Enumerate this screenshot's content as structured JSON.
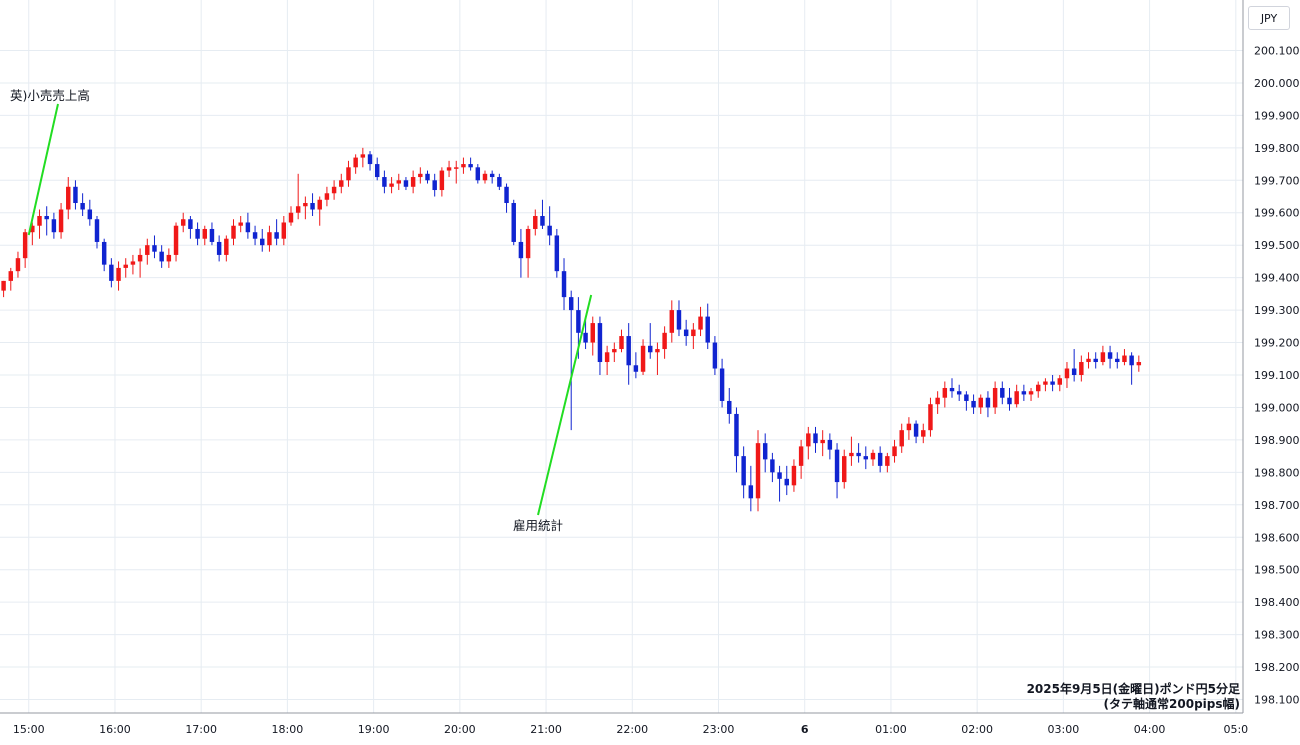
{
  "currency": "JPY",
  "caption": {
    "line1": "2025年9月5日(金曜日)ポンド円5分足",
    "line2": "(タテ軸通常200pips幅)"
  },
  "colors": {
    "up": "#f01818",
    "down": "#1024d0",
    "annotation": "#22dd22",
    "grid": "#e6ecf2",
    "axis": "#9598a1"
  },
  "chart_data": {
    "type": "candlestick",
    "ylim": [
      198.08,
      200.12
    ],
    "y_ticks": [
      "200.100",
      "200.000",
      "199.900",
      "199.800",
      "199.700",
      "199.600",
      "199.500",
      "199.400",
      "199.300",
      "199.200",
      "199.100",
      "199.000",
      "198.900",
      "198.800",
      "198.700",
      "198.600",
      "198.500",
      "198.400",
      "198.300",
      "198.200",
      "198.100"
    ],
    "x_ticks": [
      "15:00",
      "16:00",
      "17:00",
      "18:00",
      "19:00",
      "20:00",
      "21:00",
      "22:00",
      "23:00",
      "6",
      "01:00",
      "02:00",
      "03:00",
      "04:00",
      "05:0"
    ],
    "x_tick_minutes": [
      900,
      960,
      1020,
      1080,
      1140,
      1200,
      1260,
      1320,
      1380,
      1440,
      1500,
      1560,
      1620,
      1680,
      1740
    ],
    "x_range_minutes": [
      880,
      1745
    ],
    "candle_minutes": 5,
    "start_minute": 880,
    "annotations": [
      {
        "text": "英)小売売上高",
        "time": "15:00"
      },
      {
        "text": "雇用統計",
        "time": "21:30"
      }
    ],
    "candles": [
      [
        199.36,
        199.39,
        199.34,
        199.39
      ],
      [
        199.39,
        199.43,
        199.36,
        199.42
      ],
      [
        199.42,
        199.48,
        199.4,
        199.46
      ],
      [
        199.46,
        199.55,
        199.43,
        199.54
      ],
      [
        199.54,
        199.57,
        199.5,
        199.56
      ],
      [
        199.56,
        199.61,
        199.52,
        199.59
      ],
      [
        199.59,
        199.62,
        199.53,
        199.58
      ],
      [
        199.58,
        199.6,
        199.52,
        199.54
      ],
      [
        199.54,
        199.63,
        199.52,
        199.61
      ],
      [
        199.61,
        199.71,
        199.58,
        199.68
      ],
      [
        199.68,
        199.7,
        199.61,
        199.63
      ],
      [
        199.63,
        199.66,
        199.59,
        199.61
      ],
      [
        199.61,
        199.64,
        199.56,
        199.58
      ],
      [
        199.58,
        199.59,
        199.49,
        199.51
      ],
      [
        199.51,
        199.52,
        199.42,
        199.44
      ],
      [
        199.44,
        199.46,
        199.37,
        199.39
      ],
      [
        199.39,
        199.45,
        199.36,
        199.43
      ],
      [
        199.43,
        199.46,
        199.4,
        199.44
      ],
      [
        199.44,
        199.47,
        199.41,
        199.45
      ],
      [
        199.45,
        199.49,
        199.4,
        199.47
      ],
      [
        199.47,
        199.52,
        199.44,
        199.5
      ],
      [
        199.5,
        199.53,
        199.46,
        199.48
      ],
      [
        199.48,
        199.5,
        199.43,
        199.45
      ],
      [
        199.45,
        199.49,
        199.43,
        199.47
      ],
      [
        199.47,
        199.57,
        199.45,
        199.56
      ],
      [
        199.56,
        199.6,
        199.54,
        199.58
      ],
      [
        199.58,
        199.59,
        199.52,
        199.55
      ],
      [
        199.55,
        199.57,
        199.5,
        199.52
      ],
      [
        199.52,
        199.56,
        199.5,
        199.55
      ],
      [
        199.55,
        199.57,
        199.5,
        199.51
      ],
      [
        199.51,
        199.53,
        199.45,
        199.47
      ],
      [
        199.47,
        199.53,
        199.45,
        199.52
      ],
      [
        199.52,
        199.58,
        199.5,
        199.56
      ],
      [
        199.56,
        199.59,
        199.54,
        199.57
      ],
      [
        199.57,
        199.6,
        199.52,
        199.54
      ],
      [
        199.54,
        199.56,
        199.5,
        199.52
      ],
      [
        199.52,
        199.55,
        199.48,
        199.5
      ],
      [
        199.5,
        199.56,
        199.48,
        199.54
      ],
      [
        199.54,
        199.58,
        199.5,
        199.52
      ],
      [
        199.52,
        199.59,
        199.5,
        199.57
      ],
      [
        199.57,
        199.62,
        199.56,
        199.6
      ],
      [
        199.6,
        199.72,
        199.58,
        199.62
      ],
      [
        199.62,
        199.65,
        199.58,
        199.63
      ],
      [
        199.63,
        199.66,
        199.59,
        199.61
      ],
      [
        199.61,
        199.65,
        199.56,
        199.64
      ],
      [
        199.64,
        199.68,
        199.62,
        199.66
      ],
      [
        199.66,
        199.7,
        199.64,
        199.68
      ],
      [
        199.68,
        199.72,
        199.66,
        199.7
      ],
      [
        199.7,
        199.76,
        199.68,
        199.74
      ],
      [
        199.74,
        199.78,
        199.72,
        199.77
      ],
      [
        199.77,
        199.8,
        199.74,
        199.78
      ],
      [
        199.78,
        199.79,
        199.73,
        199.75
      ],
      [
        199.75,
        199.77,
        199.7,
        199.71
      ],
      [
        199.71,
        199.73,
        199.66,
        199.68
      ],
      [
        199.68,
        199.71,
        199.66,
        199.69
      ],
      [
        199.69,
        199.72,
        199.67,
        199.7
      ],
      [
        199.7,
        199.71,
        199.67,
        199.68
      ],
      [
        199.68,
        199.73,
        199.66,
        199.71
      ],
      [
        199.71,
        199.74,
        199.69,
        199.72
      ],
      [
        199.72,
        199.73,
        199.69,
        199.7
      ],
      [
        199.7,
        199.72,
        199.65,
        199.67
      ],
      [
        199.67,
        199.74,
        199.65,
        199.73
      ],
      [
        199.73,
        199.76,
        199.71,
        199.74
      ],
      [
        199.74,
        199.76,
        199.69,
        199.74
      ],
      [
        199.74,
        199.77,
        199.72,
        199.75
      ],
      [
        199.75,
        199.77,
        199.73,
        199.74
      ],
      [
        199.74,
        199.75,
        199.69,
        199.7
      ],
      [
        199.7,
        199.73,
        199.69,
        199.72
      ],
      [
        199.72,
        199.73,
        199.69,
        199.71
      ],
      [
        199.71,
        199.72,
        199.67,
        199.68
      ],
      [
        199.68,
        199.69,
        199.6,
        199.63
      ],
      [
        199.63,
        199.64,
        199.5,
        199.51
      ],
      [
        199.51,
        199.55,
        199.4,
        199.46
      ],
      [
        199.46,
        199.56,
        199.4,
        199.55
      ],
      [
        199.55,
        199.61,
        199.53,
        199.59
      ],
      [
        199.59,
        199.64,
        199.55,
        199.56
      ],
      [
        199.56,
        199.62,
        199.5,
        199.53
      ],
      [
        199.53,
        199.55,
        199.4,
        199.42
      ],
      [
        199.42,
        199.46,
        199.3,
        199.34
      ],
      [
        199.34,
        199.36,
        198.93,
        199.3
      ],
      [
        199.3,
        199.34,
        199.15,
        199.23
      ],
      [
        199.23,
        199.27,
        199.18,
        199.2
      ],
      [
        199.2,
        199.28,
        199.16,
        199.26
      ],
      [
        199.26,
        199.28,
        199.1,
        199.14
      ],
      [
        199.14,
        199.19,
        199.1,
        199.17
      ],
      [
        199.17,
        199.2,
        199.14,
        199.18
      ],
      [
        199.18,
        199.24,
        199.17,
        199.22
      ],
      [
        199.22,
        199.26,
        199.07,
        199.13
      ],
      [
        199.13,
        199.17,
        199.09,
        199.11
      ],
      [
        199.11,
        199.21,
        199.1,
        199.19
      ],
      [
        199.19,
        199.26,
        199.15,
        199.17
      ],
      [
        199.17,
        199.2,
        199.1,
        199.18
      ],
      [
        199.18,
        199.25,
        199.15,
        199.23
      ],
      [
        199.23,
        199.33,
        199.2,
        199.3
      ],
      [
        199.3,
        199.33,
        199.22,
        199.24
      ],
      [
        199.24,
        199.27,
        199.19,
        199.22
      ],
      [
        199.22,
        199.26,
        199.18,
        199.24
      ],
      [
        199.24,
        199.31,
        199.22,
        199.28
      ],
      [
        199.28,
        199.32,
        199.18,
        199.2
      ],
      [
        199.2,
        199.22,
        199.1,
        199.12
      ],
      [
        199.12,
        199.15,
        199.0,
        199.02
      ],
      [
        199.02,
        199.06,
        198.95,
        198.98
      ],
      [
        198.98,
        199.0,
        198.8,
        198.85
      ],
      [
        198.85,
        198.88,
        198.72,
        198.76
      ],
      [
        198.76,
        198.82,
        198.68,
        198.72
      ],
      [
        198.72,
        198.93,
        198.68,
        198.89
      ],
      [
        198.89,
        198.92,
        198.8,
        198.84
      ],
      [
        198.84,
        198.86,
        198.77,
        198.8
      ],
      [
        198.8,
        198.82,
        198.71,
        198.78
      ],
      [
        198.78,
        198.82,
        198.73,
        198.76
      ],
      [
        198.76,
        198.84,
        198.74,
        198.82
      ],
      [
        198.82,
        198.9,
        198.78,
        198.88
      ],
      [
        198.88,
        198.94,
        198.84,
        198.92
      ],
      [
        198.92,
        198.94,
        198.86,
        198.89
      ],
      [
        198.89,
        198.93,
        198.85,
        198.9
      ],
      [
        198.9,
        198.92,
        198.84,
        198.87
      ],
      [
        198.87,
        198.89,
        198.72,
        198.77
      ],
      [
        198.77,
        198.87,
        198.75,
        198.85
      ],
      [
        198.85,
        198.91,
        198.82,
        198.86
      ],
      [
        198.86,
        198.89,
        198.83,
        198.85
      ],
      [
        198.85,
        198.88,
        198.81,
        198.84
      ],
      [
        198.84,
        198.87,
        198.82,
        198.86
      ],
      [
        198.86,
        198.88,
        198.8,
        198.82
      ],
      [
        198.82,
        198.86,
        198.8,
        198.85
      ],
      [
        198.85,
        198.9,
        198.83,
        198.88
      ],
      [
        198.88,
        198.95,
        198.86,
        198.93
      ],
      [
        198.93,
        198.97,
        198.9,
        198.95
      ],
      [
        198.95,
        198.96,
        198.89,
        198.91
      ],
      [
        198.91,
        198.95,
        198.89,
        198.93
      ],
      [
        198.93,
        199.03,
        198.91,
        199.01
      ],
      [
        199.01,
        199.05,
        198.98,
        199.03
      ],
      [
        199.03,
        199.08,
        199.0,
        199.06
      ],
      [
        199.06,
        199.09,
        199.03,
        199.05
      ],
      [
        199.05,
        199.07,
        199.02,
        199.04
      ],
      [
        199.04,
        199.05,
        198.99,
        199.02
      ],
      [
        199.02,
        199.04,
        198.98,
        199.0
      ],
      [
        199.0,
        199.04,
        198.98,
        199.03
      ],
      [
        199.03,
        199.05,
        198.97,
        199.0
      ],
      [
        199.0,
        199.08,
        198.98,
        199.06
      ],
      [
        199.06,
        199.08,
        199.01,
        199.03
      ],
      [
        199.03,
        199.06,
        198.99,
        199.01
      ],
      [
        199.01,
        199.07,
        199.0,
        199.05
      ],
      [
        199.05,
        199.07,
        199.02,
        199.04
      ],
      [
        199.04,
        199.06,
        199.02,
        199.05
      ],
      [
        199.05,
        199.08,
        199.03,
        199.07
      ],
      [
        199.07,
        199.09,
        199.05,
        199.08
      ],
      [
        199.08,
        199.1,
        199.05,
        199.07
      ],
      [
        199.07,
        199.1,
        199.05,
        199.09
      ],
      [
        199.09,
        199.14,
        199.06,
        199.12
      ],
      [
        199.12,
        199.18,
        199.08,
        199.1
      ],
      [
        199.1,
        199.16,
        199.08,
        199.14
      ],
      [
        199.14,
        199.17,
        199.12,
        199.15
      ],
      [
        199.15,
        199.17,
        199.12,
        199.14
      ],
      [
        199.14,
        199.19,
        199.13,
        199.17
      ],
      [
        199.17,
        199.19,
        199.12,
        199.15
      ],
      [
        199.15,
        199.17,
        199.12,
        199.14
      ],
      [
        199.14,
        199.18,
        199.13,
        199.16
      ],
      [
        199.16,
        199.17,
        199.07,
        199.13
      ],
      [
        199.13,
        199.16,
        199.11,
        199.14
      ]
    ]
  }
}
